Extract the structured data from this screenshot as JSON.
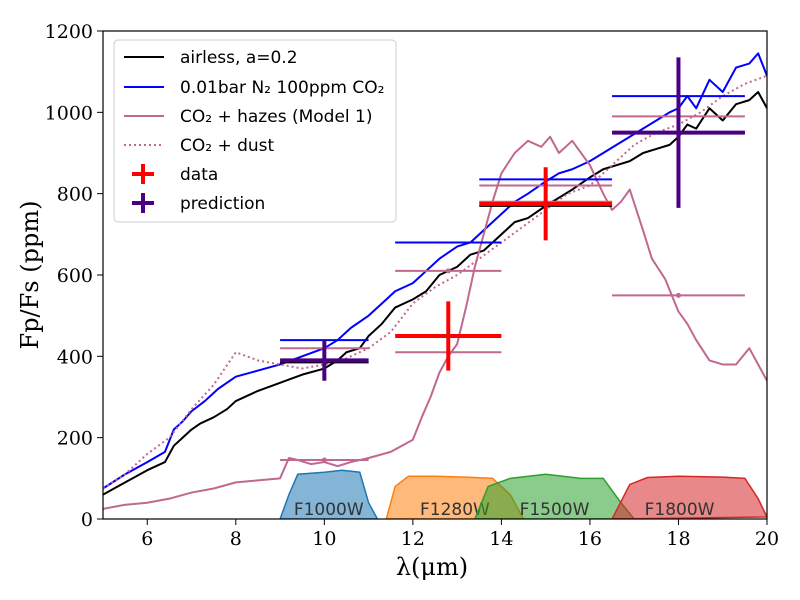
{
  "chart_data": {
    "type": "line",
    "xlabel": "λ(μm)",
    "ylabel": "Fp/Fs (ppm)",
    "xlim": [
      5,
      20
    ],
    "ylim": [
      0,
      1200
    ],
    "xticks": [
      6,
      8,
      10,
      12,
      14,
      16,
      18,
      20
    ],
    "yticks": [
      0,
      200,
      400,
      600,
      800,
      1000,
      1200
    ],
    "legend_position": "top-left",
    "legend": [
      {
        "name": "airless, a=0.2",
        "color": "#000000",
        "style": "solid"
      },
      {
        "name": "0.01bar N₂ 100ppm CO₂",
        "color": "#0000ff",
        "style": "solid"
      },
      {
        "name": "CO₂ + hazes (Model 1)",
        "color": "#c06890",
        "style": "solid"
      },
      {
        "name": "CO₂ + dust",
        "color": "#c06890",
        "style": "dotted"
      },
      {
        "name": "data",
        "color": "#ff0000",
        "style": "cross"
      },
      {
        "name": "prediction",
        "color": "#4b0082",
        "style": "cross"
      }
    ],
    "filters": [
      {
        "name": "F1000W",
        "color": "#1f77b4",
        "points": [
          [
            9.0,
            0
          ],
          [
            9.2,
            60
          ],
          [
            9.4,
            110
          ],
          [
            10,
            115
          ],
          [
            10.4,
            120
          ],
          [
            10.8,
            115
          ],
          [
            11.0,
            40
          ],
          [
            11.2,
            0
          ]
        ]
      },
      {
        "name": "F1280W",
        "color": "#ff7f0e",
        "points": [
          [
            11.4,
            0
          ],
          [
            11.6,
            80
          ],
          [
            11.9,
            105
          ],
          [
            12.5,
            105
          ],
          [
            13.2,
            103
          ],
          [
            13.8,
            100
          ],
          [
            14.2,
            60
          ],
          [
            14.5,
            0
          ]
        ]
      },
      {
        "name": "F1500W",
        "color": "#2ca02c",
        "points": [
          [
            13.4,
            0
          ],
          [
            13.7,
            80
          ],
          [
            14.2,
            100
          ],
          [
            15,
            110
          ],
          [
            15.8,
            100
          ],
          [
            16.3,
            100
          ],
          [
            16.7,
            40
          ],
          [
            17.0,
            0
          ]
        ]
      },
      {
        "name": "F1800W",
        "color": "#d62728",
        "points": [
          [
            16.5,
            0
          ],
          [
            16.9,
            85
          ],
          [
            17.3,
            102
          ],
          [
            18,
            105
          ],
          [
            19,
            103
          ],
          [
            19.5,
            100
          ],
          [
            19.8,
            50
          ],
          [
            20.0,
            5
          ]
        ]
      }
    ],
    "series": [
      {
        "name": "airless, a=0.2",
        "color": "#000000",
        "style": "solid",
        "x": [
          5,
          5.5,
          6,
          6.4,
          6.6,
          6.8,
          7,
          7.2,
          7.5,
          7.8,
          8,
          8.5,
          9,
          9.5,
          10,
          10.3,
          10.5,
          10.8,
          11,
          11.3,
          11.6,
          12,
          12.3,
          12.6,
          13,
          13.3,
          13.6,
          14,
          14.3,
          14.6,
          15,
          15.3,
          15.6,
          16,
          16.3,
          16.6,
          16.9,
          17.2,
          17.5,
          17.8,
          18,
          18.2,
          18.4,
          18.7,
          19,
          19.3,
          19.6,
          19.8,
          20
        ],
        "y": [
          60,
          90,
          120,
          140,
          180,
          200,
          220,
          235,
          250,
          270,
          290,
          315,
          335,
          355,
          370,
          390,
          410,
          420,
          450,
          480,
          520,
          540,
          560,
          600,
          620,
          650,
          660,
          700,
          730,
          740,
          770,
          790,
          810,
          840,
          860,
          870,
          880,
          900,
          910,
          920,
          940,
          970,
          960,
          1010,
          980,
          1020,
          1030,
          1050,
          1010
        ]
      },
      {
        "name": "0.01bar N₂ 100ppm CO₂",
        "color": "#0000ff",
        "style": "solid",
        "x": [
          5,
          5.5,
          6,
          6.4,
          6.6,
          6.8,
          7,
          7.3,
          7.6,
          8,
          8.5,
          9,
          9.5,
          10,
          10.3,
          10.6,
          11,
          11.3,
          11.6,
          12,
          12.3,
          12.6,
          13,
          13.3,
          13.6,
          14,
          14.3,
          14.6,
          15,
          15.3,
          15.6,
          16,
          16.3,
          16.6,
          16.9,
          17.2,
          17.5,
          17.8,
          18,
          18.2,
          18.4,
          18.7,
          19,
          19.3,
          19.6,
          19.8,
          20
        ],
        "y": [
          75,
          110,
          140,
          165,
          220,
          240,
          265,
          290,
          320,
          350,
          365,
          380,
          400,
          420,
          440,
          470,
          500,
          530,
          560,
          580,
          610,
          640,
          670,
          680,
          710,
          750,
          780,
          800,
          830,
          850,
          860,
          880,
          900,
          920,
          940,
          960,
          980,
          1000,
          1010,
          1040,
          1010,
          1080,
          1050,
          1110,
          1120,
          1145,
          1090
        ]
      },
      {
        "name": "CO₂ + hazes (Model 1)",
        "color": "#c06890",
        "style": "solid",
        "x": [
          5,
          5.5,
          6,
          6.5,
          7,
          7.5,
          8,
          8.5,
          9,
          9.2,
          9.4,
          9.7,
          10,
          10.3,
          10.6,
          11,
          11.5,
          12,
          12.2,
          12.4,
          12.6,
          12.8,
          13,
          13.2,
          13.4,
          13.6,
          13.8,
          14,
          14.3,
          14.6,
          14.9,
          15.1,
          15.3,
          15.6,
          16,
          16.3,
          16.5,
          16.7,
          16.9,
          17.2,
          17.4,
          17.7,
          18,
          18.2,
          18.4,
          18.7,
          19,
          19.3,
          19.6,
          20
        ],
        "y": [
          25,
          35,
          40,
          50,
          65,
          75,
          90,
          95,
          100,
          150,
          145,
          135,
          140,
          130,
          140,
          150,
          165,
          195,
          250,
          300,
          360,
          400,
          430,
          520,
          620,
          700,
          780,
          850,
          900,
          930,
          915,
          940,
          900,
          930,
          870,
          800,
          760,
          780,
          810,
          710,
          640,
          590,
          510,
          480,
          440,
          390,
          380,
          380,
          420,
          340
        ]
      },
      {
        "name": "CO₂ + dust",
        "color": "#c06890",
        "style": "dotted",
        "x": [
          5,
          5.5,
          6,
          6.5,
          7,
          7.5,
          8,
          8.5,
          9,
          9.5,
          10,
          10.5,
          11,
          11.5,
          12,
          12.5,
          13,
          13.5,
          14,
          14.5,
          15,
          15.5,
          16,
          16.5,
          17,
          17.5,
          18,
          18.5,
          19,
          19.5,
          20
        ],
        "y": [
          75,
          110,
          160,
          200,
          270,
          330,
          410,
          390,
          380,
          370,
          380,
          395,
          420,
          460,
          530,
          570,
          600,
          640,
          680,
          720,
          760,
          800,
          820,
          870,
          920,
          950,
          970,
          1000,
          1040,
          1070,
          1090
        ]
      }
    ],
    "errorbars": [
      {
        "group": "data",
        "color": "#ff0000",
        "x": 12.8,
        "y": 450,
        "xerr": [
          11.6,
          14.0
        ],
        "yerr": [
          365,
          535
        ]
      },
      {
        "group": "data",
        "color": "#ff0000",
        "x": 15.0,
        "y": 775,
        "xerr": [
          13.5,
          16.5
        ],
        "yerr": [
          685,
          865
        ]
      },
      {
        "group": "prediction",
        "color": "#4b0082",
        "x": 10.0,
        "y": 390,
        "xerr": [
          9.0,
          11.0
        ],
        "yerr": [
          340,
          440
        ]
      },
      {
        "group": "prediction",
        "color": "#4b0082",
        "x": 18.0,
        "y": 950,
        "xerr": [
          16.5,
          19.5
        ],
        "yerr": [
          765,
          1135
        ]
      }
    ],
    "band_bars": [
      {
        "color": "#0000ff",
        "y": 440,
        "xr": [
          9.0,
          11.0
        ]
      },
      {
        "color": "#0000ff",
        "y": 680,
        "xr": [
          11.6,
          14.0
        ]
      },
      {
        "color": "#0000ff",
        "y": 835,
        "xr": [
          13.5,
          16.5
        ]
      },
      {
        "color": "#0000ff",
        "y": 1040,
        "xr": [
          16.5,
          19.5
        ]
      },
      {
        "color": "#c06890",
        "y": 145,
        "xr": [
          9.0,
          11.0
        ]
      },
      {
        "color": "#c06890",
        "y": 410,
        "xr": [
          11.6,
          14.0
        ]
      },
      {
        "color": "#c06890",
        "y": 780,
        "xr": [
          13.5,
          16.5
        ]
      },
      {
        "color": "#c06890",
        "y": 550,
        "xr": [
          16.5,
          19.5
        ]
      },
      {
        "color": "#c06890",
        "y": 420,
        "xr": [
          9.0,
          11.0
        ]
      },
      {
        "color": "#c06890",
        "y": 610,
        "xr": [
          11.6,
          14.0
        ]
      },
      {
        "color": "#c06890",
        "y": 820,
        "xr": [
          13.5,
          16.5
        ]
      },
      {
        "color": "#c06890",
        "y": 990,
        "xr": [
          16.5,
          19.5
        ]
      },
      {
        "color": "#000000",
        "y": 385,
        "xr": [
          9.0,
          11.0
        ]
      },
      {
        "color": "#000000",
        "y": 770,
        "xr": [
          13.5,
          16.5
        ]
      },
      {
        "color": "#000000",
        "y": 950,
        "xr": [
          16.5,
          19.5
        ]
      }
    ]
  }
}
